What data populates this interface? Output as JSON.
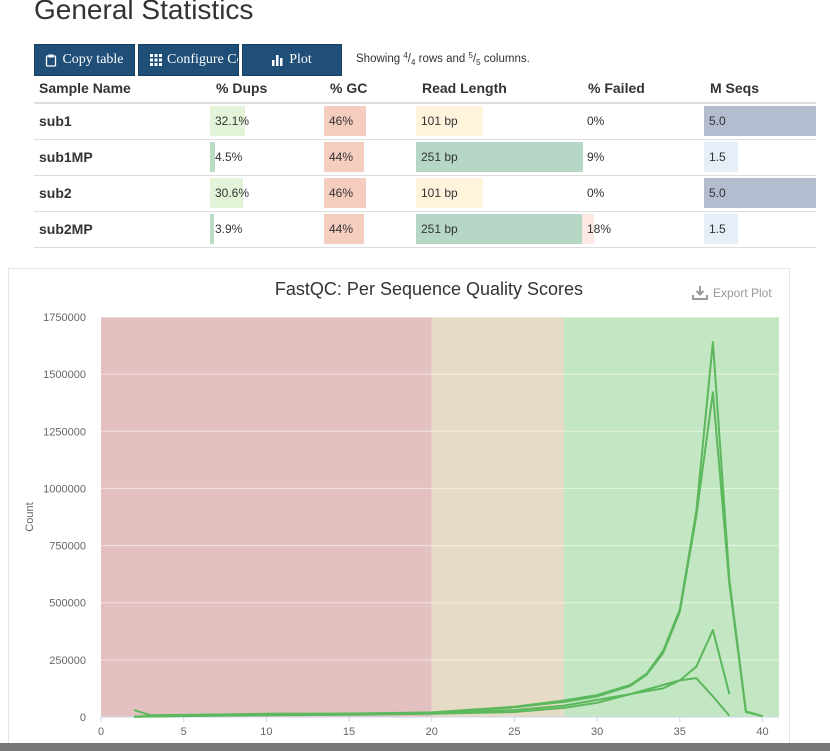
{
  "page": {
    "title": "General Statistics"
  },
  "toolbar": {
    "copy_label": "Copy table",
    "configure_label": "Configure Columns",
    "plot_label": "Plot",
    "showing_prefix": "Showing ",
    "rows_num": "4",
    "rows_den": "4",
    "rows_text": " rows and ",
    "cols_num": "5",
    "cols_den": "5",
    "cols_text": " columns."
  },
  "table": {
    "headers": [
      "Sample Name",
      "% Dups",
      "% GC",
      "Read Length",
      "% Failed",
      "M Seqs"
    ],
    "rows": [
      {
        "name": "sub1",
        "dups": "32.1%",
        "gc": "46%",
        "read_length": "101 bp",
        "failed": "0%",
        "mseqs": "5.0"
      },
      {
        "name": "sub1MP",
        "dups": "4.5%",
        "gc": "44%",
        "read_length": "251 bp",
        "failed": "9%",
        "mseqs": "1.5"
      },
      {
        "name": "sub2",
        "dups": "30.6%",
        "gc": "46%",
        "read_length": "101 bp",
        "failed": "0%",
        "mseqs": "5.0"
      },
      {
        "name": "sub2MP",
        "dups": "3.9%",
        "gc": "44%",
        "read_length": "251 bp",
        "failed": "18%",
        "mseqs": "1.5"
      }
    ],
    "bar_fractions": {
      "dups": [
        0.97,
        0.14,
        0.93,
        0.12
      ],
      "gc": [
        1.0,
        0.95,
        1.0,
        0.95
      ],
      "length": [
        0.4,
        1.0,
        0.4,
        1.0
      ],
      "failed": [
        0.0,
        0.0,
        0.0,
        0.1
      ],
      "mseqs": [
        1.0,
        0.3,
        1.0,
        0.3
      ]
    },
    "colors": {
      "dups": "#e2f3d7",
      "dups_small": "#b8dcc4",
      "gc": "#f5cdbe",
      "length_short": "#fff3dc",
      "length_long": "#b6d6c6",
      "failed": "#fde8e3",
      "mseqs_high": "#b4bdd0",
      "mseqs_low": "#e6eef8"
    }
  },
  "plot": {
    "export_label": "Export Plot"
  },
  "chart_data": {
    "type": "line",
    "title": "FastQC: Per Sequence Quality Scores",
    "xlabel": "",
    "ylabel": "Count",
    "xlim": [
      0,
      41
    ],
    "ylim": [
      0,
      1750000
    ],
    "xticks": [
      0,
      5,
      10,
      15,
      20,
      25,
      30,
      35,
      40
    ],
    "yticks": [
      0,
      250000,
      500000,
      750000,
      1000000,
      1250000,
      1500000,
      1750000
    ],
    "bands": [
      {
        "from": 0,
        "to": 20,
        "color": "#e4c1c1"
      },
      {
        "from": 20,
        "to": 28,
        "color": "#e6dbc5"
      },
      {
        "from": 28,
        "to": 41,
        "color": "#c3e6c3"
      }
    ],
    "line_color": "#5cb85c",
    "series": [
      {
        "x": [
          2,
          3,
          5,
          10,
          15,
          20,
          25,
          28,
          30,
          32,
          33,
          34,
          35,
          36,
          37,
          38,
          39,
          40
        ],
        "y": [
          30000,
          8000,
          9000,
          14000,
          15000,
          20000,
          45000,
          72000,
          96000,
          140000,
          190000,
          290000,
          470000,
          900000,
          1640000,
          600000,
          25000,
          4000
        ]
      },
      {
        "x": [
          2,
          3,
          5,
          10,
          15,
          20,
          25,
          28,
          30,
          32,
          33,
          34,
          35,
          36,
          37,
          38,
          39,
          40
        ],
        "y": [
          1000,
          5000,
          8000,
          13000,
          14000,
          18000,
          42000,
          66000,
          90000,
          135000,
          185000,
          280000,
          460000,
          880000,
          1420000,
          580000,
          22000,
          3000
        ]
      },
      {
        "x": [
          2,
          5,
          10,
          15,
          20,
          25,
          28,
          30,
          32,
          34,
          35,
          36,
          37,
          38
        ],
        "y": [
          1000,
          5000,
          9000,
          12000,
          16000,
          30000,
          50000,
          75000,
          100000,
          125000,
          160000,
          220000,
          380000,
          100000
        ]
      },
      {
        "x": [
          2,
          5,
          10,
          15,
          20,
          25,
          28,
          30,
          32,
          34,
          35,
          36,
          37,
          38
        ],
        "y": [
          1000,
          4000,
          8000,
          10000,
          14000,
          22000,
          40000,
          62000,
          100000,
          140000,
          160000,
          170000,
          90000,
          5000
        ]
      }
    ]
  }
}
